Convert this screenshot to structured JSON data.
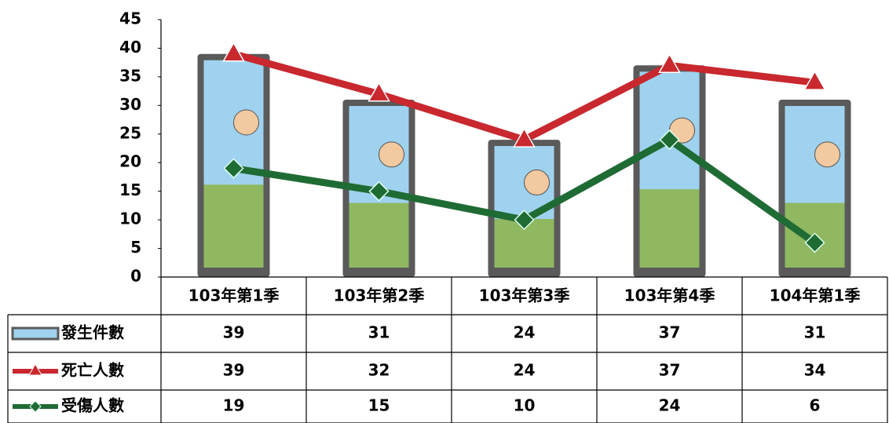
{
  "chart_data": {
    "type": "combo",
    "categories": [
      "103年第1季",
      "103年第2季",
      "103年第3季",
      "103年第4季",
      "104年第1季"
    ],
    "series": [
      {
        "name": "發生件數",
        "type": "bar",
        "color": "#5a5a5a",
        "values": [
          39,
          31,
          24,
          37,
          31
        ]
      },
      {
        "name": "死亡人數",
        "type": "line",
        "marker": "triangle",
        "color": "#c8282e",
        "values": [
          39,
          32,
          24,
          37,
          34
        ]
      },
      {
        "name": "受傷人數",
        "type": "line",
        "marker": "diamond",
        "color": "#1f6b34",
        "values": [
          19,
          15,
          10,
          24,
          6
        ]
      }
    ],
    "ylim": [
      0,
      45
    ],
    "yticks": [
      0,
      5,
      10,
      15,
      20,
      25,
      30,
      35,
      40,
      45
    ],
    "grid": false,
    "data_table": true
  }
}
